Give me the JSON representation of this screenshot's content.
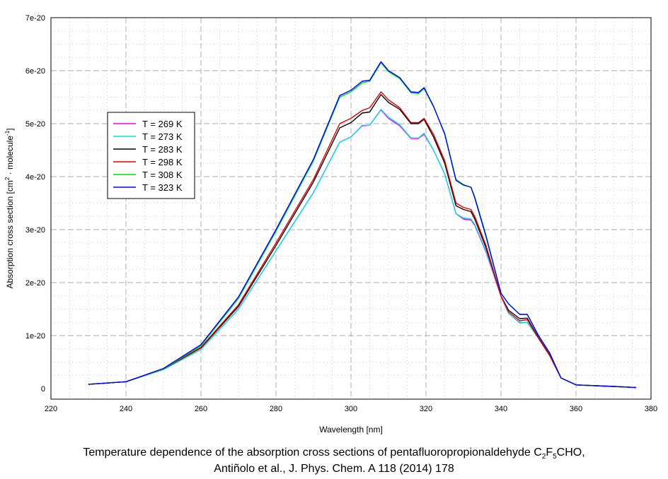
{
  "chart_data": {
    "type": "line",
    "xlabel": "Wavelength [nm]",
    "ylabel_parts": [
      "Absorption cross section [cm",
      "2",
      " · molecule",
      "-1",
      "]"
    ],
    "xlim": [
      220,
      380
    ],
    "ylim": [
      0,
      7e-20
    ],
    "xticks": [
      220,
      240,
      260,
      280,
      300,
      320,
      340,
      360,
      380
    ],
    "yticks": [
      0,
      1e-20,
      2e-20,
      3e-20,
      4e-20,
      5e-20,
      6e-20,
      7e-20
    ],
    "ytick_labels": [
      "0",
      "1e-20",
      "2e-20",
      "3e-20",
      "4e-20",
      "5e-20",
      "6e-20",
      "7e-20"
    ],
    "grid": true,
    "legend_position": "upper-left",
    "y_unit_scale": 1e-20,
    "x": [
      230,
      240,
      250,
      260,
      270,
      280,
      290,
      297,
      300,
      303,
      305,
      308,
      310,
      313,
      316,
      318,
      319.5,
      322,
      325,
      328,
      330,
      332,
      333,
      336,
      340,
      342,
      345,
      347,
      350,
      353,
      356,
      360,
      370,
      376
    ],
    "series": [
      {
        "name": "T = 269 K",
        "color": "#ff00ff",
        "values": [
          0.08,
          0.13,
          0.36,
          0.74,
          1.5,
          2.6,
          3.7,
          4.65,
          4.75,
          4.96,
          4.97,
          5.26,
          5.1,
          4.96,
          4.72,
          4.72,
          4.8,
          4.5,
          4.05,
          3.3,
          3.2,
          3.18,
          3.08,
          2.58,
          1.74,
          1.42,
          1.24,
          1.25,
          0.95,
          0.62,
          0.2,
          0.07,
          0.04,
          0.02
        ]
      },
      {
        "name": "T = 273 K",
        "color": "#00e0e0",
        "values": [
          0.08,
          0.13,
          0.36,
          0.74,
          1.5,
          2.6,
          3.7,
          4.65,
          4.75,
          4.97,
          4.97,
          5.27,
          5.12,
          4.98,
          4.73,
          4.73,
          4.82,
          4.5,
          4.05,
          3.3,
          3.22,
          3.2,
          3.1,
          2.6,
          1.75,
          1.42,
          1.25,
          1.25,
          0.95,
          0.62,
          0.2,
          0.07,
          0.04,
          0.02
        ]
      },
      {
        "name": "T = 283 K",
        "color": "#000000",
        "values": [
          0.08,
          0.13,
          0.37,
          0.77,
          1.55,
          2.7,
          3.9,
          4.92,
          5.02,
          5.2,
          5.22,
          5.55,
          5.4,
          5.27,
          5.0,
          5.0,
          5.08,
          4.75,
          4.25,
          3.45,
          3.38,
          3.34,
          3.2,
          2.66,
          1.75,
          1.48,
          1.32,
          1.33,
          0.96,
          0.63,
          0.2,
          0.07,
          0.04,
          0.02
        ]
      },
      {
        "name": "T = 298 K",
        "color": "#dd0000",
        "values": [
          0.08,
          0.13,
          0.37,
          0.78,
          1.58,
          2.75,
          3.95,
          5.0,
          5.1,
          5.25,
          5.3,
          5.6,
          5.45,
          5.3,
          5.02,
          5.02,
          5.1,
          4.8,
          4.3,
          3.5,
          3.42,
          3.38,
          3.25,
          2.7,
          1.75,
          1.45,
          1.28,
          1.3,
          0.95,
          0.62,
          0.2,
          0.07,
          0.04,
          0.02
        ]
      },
      {
        "name": "T = 308 K",
        "color": "#00dd00",
        "values": [
          0.08,
          0.13,
          0.37,
          0.81,
          1.7,
          2.97,
          4.3,
          5.5,
          5.6,
          5.77,
          5.8,
          6.15,
          5.98,
          5.85,
          5.58,
          5.57,
          5.66,
          5.32,
          4.82,
          3.95,
          3.85,
          3.8,
          3.62,
          2.9,
          1.8,
          1.6,
          1.4,
          1.4,
          1.0,
          0.67,
          0.2,
          0.07,
          0.04,
          0.02
        ]
      },
      {
        "name": "T = 323 K",
        "color": "#0000ff",
        "values": [
          0.08,
          0.13,
          0.38,
          0.83,
          1.73,
          3.0,
          4.33,
          5.53,
          5.63,
          5.8,
          5.82,
          6.17,
          6.0,
          5.87,
          5.6,
          5.59,
          5.68,
          5.33,
          4.8,
          3.93,
          3.84,
          3.8,
          3.6,
          2.87,
          1.8,
          1.6,
          1.4,
          1.4,
          1.0,
          0.67,
          0.2,
          0.07,
          0.04,
          0.02
        ]
      }
    ]
  },
  "caption": {
    "line1_a": "Temperature dependence of the absorption cross sections of pentafluoropropionaldehyde C",
    "sub1": "2",
    "line1_b": "F",
    "sub2": "5",
    "line1_c": "CHO,",
    "line2": "Antiñolo et al., J. Phys. Chem. A 118 (2014) 178"
  }
}
